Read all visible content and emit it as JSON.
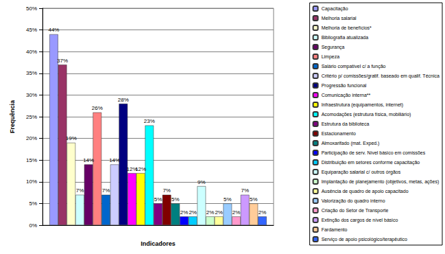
{
  "chart_data": {
    "type": "bar",
    "x_label": "Indicadores",
    "y_label": "Frequência",
    "categories": [
      null
    ],
    "tick_labels": "y",
    "ylim": [
      0,
      50
    ],
    "yticks": [
      {
        "value": 0,
        "label": "0%"
      },
      {
        "value": 5,
        "label": "5%"
      },
      {
        "value": 10,
        "label": "10%"
      },
      {
        "value": 15,
        "label": "15%"
      },
      {
        "value": 20,
        "label": "20%"
      },
      {
        "value": 25,
        "label": "25%"
      },
      {
        "value": 30,
        "label": "30%"
      },
      {
        "value": 35,
        "label": "35%"
      },
      {
        "value": 40,
        "label": "40%"
      },
      {
        "value": 45,
        "label": "45%"
      },
      {
        "value": 50,
        "label": "50%"
      }
    ],
    "grid": true,
    "legend": "right",
    "data_labels": true,
    "series": [
      {
        "name": "Capacitação",
        "color": "#9999ff",
        "values": [
          44
        ],
        "value_labels": [
          "44%"
        ]
      },
      {
        "name": "Melhoria salarial",
        "color": "#993366",
        "values": [
          37
        ],
        "value_labels": [
          "37%"
        ]
      },
      {
        "name": "Melhoria de benefícios*",
        "color": "#ffffcc",
        "values": [
          19
        ],
        "value_labels": [
          "19%"
        ]
      },
      {
        "name": "Bibliografia atualizada",
        "color": "#ccffff",
        "values": [
          7
        ],
        "value_labels": [
          "7%"
        ]
      },
      {
        "name": "Segurança",
        "color": "#660066",
        "values": [
          14
        ],
        "value_labels": [
          "14%"
        ]
      },
      {
        "name": "Limpeza",
        "color": "#ff8080",
        "values": [
          26
        ],
        "value_labels": [
          "26%"
        ]
      },
      {
        "name": "Salário compatível c/ a função",
        "color": "#0066cc",
        "values": [
          7
        ],
        "value_labels": [
          "7%"
        ]
      },
      {
        "name": "Critério p/ comissões/gratif. baseado em qualif. Técnica",
        "color": "#ccccff",
        "values": [
          14
        ],
        "value_labels": [
          "14%"
        ]
      },
      {
        "name": "Progressão funcional",
        "color": "#000080",
        "values": [
          28
        ],
        "value_labels": [
          "28%"
        ]
      },
      {
        "name": "Comunicação interna**",
        "color": "#ff00ff",
        "values": [
          12
        ],
        "value_labels": [
          "12%"
        ]
      },
      {
        "name": "Infraestrutura (equipamentos, internet)",
        "color": "#ffff00",
        "values": [
          12
        ],
        "value_labels": [
          "12%"
        ]
      },
      {
        "name": "Acomodações (estrutura física, mobiliário)",
        "color": "#00ffff",
        "values": [
          23
        ],
        "value_labels": [
          "23%"
        ]
      },
      {
        "name": "Estrutura da biblioteca",
        "color": "#800080",
        "values": [
          5
        ],
        "value_labels": [
          "5%"
        ]
      },
      {
        "name": "Estacionamento",
        "color": "#800000",
        "values": [
          7
        ],
        "value_labels": [
          "7%"
        ]
      },
      {
        "name": "Almoxarifado (mat. Exped.)",
        "color": "#008080",
        "values": [
          5
        ],
        "value_labels": [
          "5%"
        ]
      },
      {
        "name": "Participação de serv. Nível básico em comissões",
        "color": "#0000ff",
        "values": [
          2
        ],
        "value_labels": [
          "2%"
        ]
      },
      {
        "name": "Distribuição em setores conforme capacitação",
        "color": "#00ccff",
        "values": [
          2
        ],
        "value_labels": [
          "2%"
        ]
      },
      {
        "name": "Equiparação salarial c/ outros órgãos",
        "color": "#ccffff",
        "values": [
          9
        ],
        "value_labels": [
          "9%"
        ]
      },
      {
        "name": "Implantação de planejamento (objetivos, metas, ações)",
        "color": "#ccffcc",
        "values": [
          2
        ],
        "value_labels": [
          "2%"
        ]
      },
      {
        "name": "Ausência de quadro de apoio capacitado",
        "color": "#ffff99",
        "values": [
          2
        ],
        "value_labels": [
          "2%"
        ]
      },
      {
        "name": "Valorização do quadro interno",
        "color": "#99ccff",
        "values": [
          5
        ],
        "value_labels": [
          "5%"
        ]
      },
      {
        "name": "Criação do Setor de Transporte",
        "color": "#ff99cc",
        "values": [
          2
        ],
        "value_labels": [
          "2%"
        ]
      },
      {
        "name": "Extinção dos cargos de nível básico",
        "color": "#cc99ff",
        "values": [
          7
        ],
        "value_labels": [
          "7%"
        ]
      },
      {
        "name": "Fardamento",
        "color": "#ffcc99",
        "values": [
          5
        ],
        "value_labels": [
          "5%"
        ]
      },
      {
        "name": "Serviço de apoio psicológico/terapêutico",
        "color": "#3366ff",
        "values": [
          2
        ],
        "value_labels": [
          "2%"
        ]
      }
    ]
  }
}
